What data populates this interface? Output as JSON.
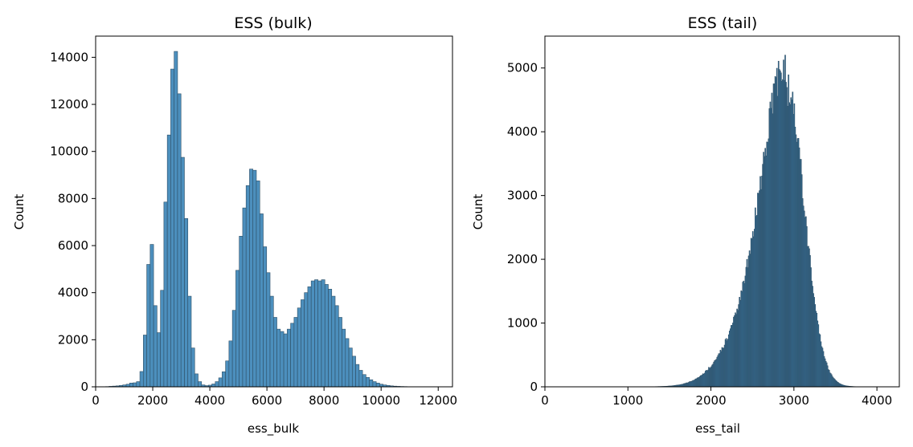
{
  "chart_data": [
    {
      "type": "bar",
      "title": "ESS (bulk)",
      "xlabel": "ess_bulk",
      "ylabel": "Count",
      "xlim": [
        0,
        12500
      ],
      "ylim": [
        0,
        14900
      ],
      "xticks": [
        0,
        2000,
        4000,
        6000,
        8000,
        10000,
        12000
      ],
      "yticks": [
        0,
        2000,
        4000,
        6000,
        8000,
        10000,
        12000,
        14000
      ],
      "bin_start": 350,
      "bin_width": 120,
      "values": [
        10,
        20,
        30,
        40,
        60,
        80,
        110,
        160,
        170,
        220,
        650,
        2200,
        5200,
        6050,
        3450,
        2300,
        4100,
        7850,
        10700,
        13500,
        14250,
        12450,
        9750,
        7150,
        3850,
        1650,
        550,
        220,
        80,
        50,
        70,
        120,
        220,
        380,
        640,
        1100,
        1950,
        3250,
        4950,
        6400,
        7600,
        8550,
        9250,
        9200,
        8750,
        7350,
        5950,
        4850,
        3850,
        2950,
        2450,
        2350,
        2250,
        2450,
        2700,
        2950,
        3350,
        3700,
        4000,
        4250,
        4500,
        4550,
        4500,
        4550,
        4350,
        4150,
        3850,
        3450,
        2950,
        2450,
        2050,
        1650,
        1300,
        950,
        700,
        520,
        400,
        300,
        220,
        160,
        110,
        80,
        60,
        40,
        28,
        20,
        14,
        10,
        6,
        4,
        2,
        1
      ],
      "color": "#4c8fbd"
    },
    {
      "type": "bar",
      "title": "ESS (tail)",
      "xlabel": "ess_tail",
      "ylabel": "Count",
      "xlim": [
        0,
        4270
      ],
      "ylim": [
        0,
        5500
      ],
      "xticks": [
        0,
        1000,
        2000,
        3000,
        4000
      ],
      "yticks": [
        0,
        1000,
        2000,
        3000,
        4000,
        5000
      ],
      "bin_start": 1000,
      "bin_width": 10,
      "color": "#3b7aa6",
      "density_model": {
        "peak_count": 4550,
        "mode": 2920,
        "sigma_left": 280,
        "sigma_right": 210,
        "tail_amplitude": 900,
        "tail_mode": 2500,
        "tail_sigma": 340
      }
    }
  ]
}
